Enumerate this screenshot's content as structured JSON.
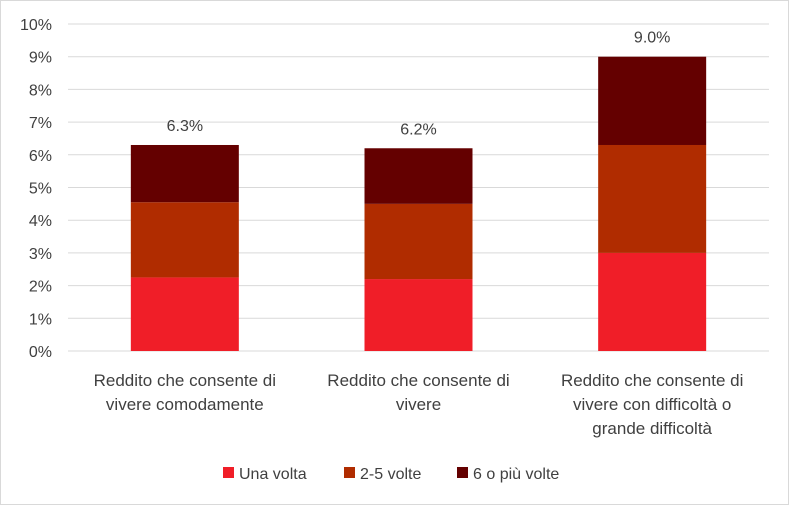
{
  "chart_data": {
    "type": "bar",
    "stacked": true,
    "title": "",
    "xlabel": "",
    "ylabel": "",
    "ylim": [
      0,
      10
    ],
    "y_ticks": [
      "0%",
      "1%",
      "2%",
      "3%",
      "4%",
      "5%",
      "6%",
      "7%",
      "8%",
      "9%",
      "10%"
    ],
    "grid": true,
    "legend_position": "bottom",
    "categories": [
      [
        "Reddito che consente di",
        "vivere comodamente"
      ],
      [
        "Reddito che consente di",
        "vivere"
      ],
      [
        "Reddito che consente di",
        "vivere con difficoltà o",
        "grande difficoltà"
      ]
    ],
    "series": [
      {
        "name": "Una volta",
        "color": "#f01e28",
        "values": [
          2.25,
          2.2,
          3.0
        ]
      },
      {
        "name": "2-5 volte",
        "color": "#b02c00",
        "values": [
          2.3,
          2.3,
          3.3
        ]
      },
      {
        "name": "6 o più volte",
        "color": "#640000",
        "values": [
          1.75,
          1.7,
          2.7
        ]
      }
    ],
    "totals": [
      "6.3%",
      "6.2%",
      "9.0%"
    ]
  }
}
